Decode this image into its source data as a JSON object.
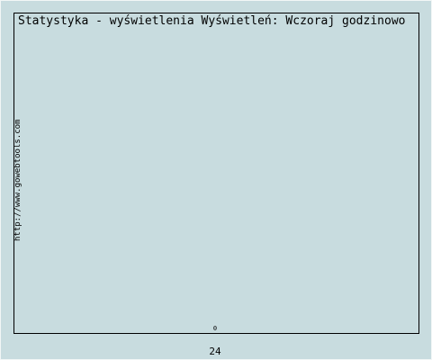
{
  "chart_data": {
    "type": "bar",
    "title": "Statystyka - wyświetlenia Wyświetleń: Wczoraj godzinowo",
    "categories": [
      "24"
    ],
    "values": [
      0
    ],
    "ylim": [
      0,
      1
    ],
    "grid": false,
    "legend": "none"
  },
  "side_text": "http://www.gowebtools.com",
  "colors": {
    "background": "#c8dcdf",
    "border": "#000000"
  }
}
